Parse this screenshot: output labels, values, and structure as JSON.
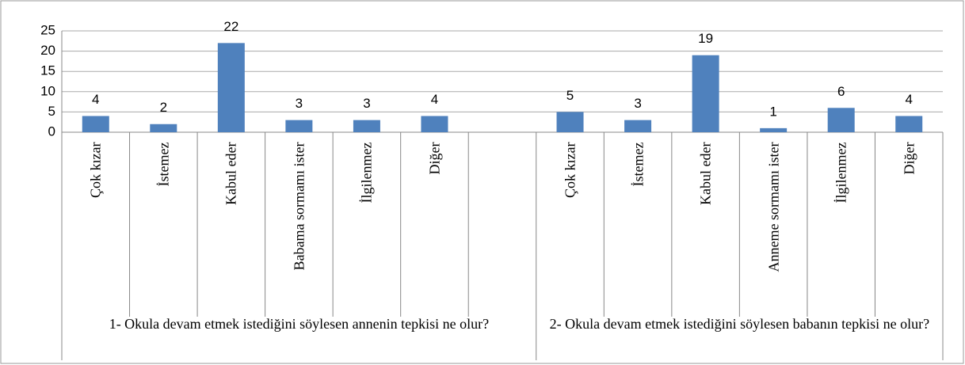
{
  "chart_data": {
    "type": "bar",
    "color": "#4f81bd",
    "ylim": [
      0,
      25
    ],
    "yticks": [
      0,
      5,
      10,
      15,
      20,
      25
    ],
    "grid": true,
    "groups": [
      {
        "name": "1- Okula devam etmek istediğini söylesen annenin tepkisi ne olur?",
        "categories": [
          "Çok kızar",
          "İstemez",
          "Kabul eder",
          "Babama sormamı ister",
          "İlgilenmez",
          "Diğer",
          null
        ],
        "values": [
          4,
          2,
          22,
          3,
          3,
          4,
          null
        ]
      },
      {
        "name": "2- Okula devam etmek istediğini söylesen babanın tepkisi ne olur?",
        "categories": [
          "Çok kızar",
          "İstemez",
          "Kabul eder",
          "Anneme sormamı ister",
          "İlgilenmez",
          "Diğer"
        ],
        "values": [
          5,
          3,
          19,
          1,
          6,
          4
        ]
      }
    ]
  }
}
